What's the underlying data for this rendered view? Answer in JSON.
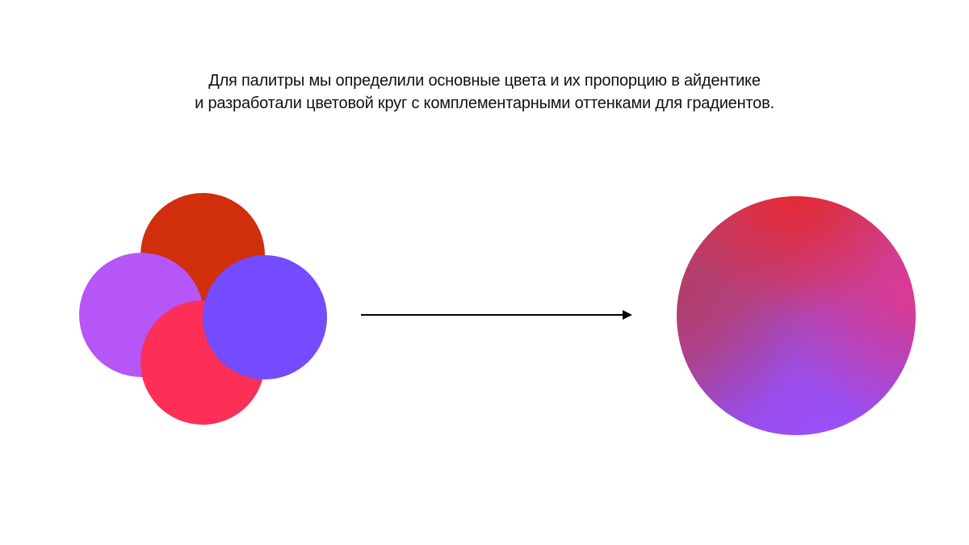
{
  "caption": {
    "line1": "Для палитры мы определили основные цвета и их пропорцию в айдентике",
    "line2": "и разработали цветовой круг с комплементарными оттенками для градиентов."
  },
  "palette": {
    "colors": [
      {
        "name": "red",
        "hex": "#d12e0b"
      },
      {
        "name": "violet",
        "hex": "#b655f8"
      },
      {
        "name": "pink",
        "hex": "#fd2f57"
      },
      {
        "name": "blue-violet",
        "hex": "#744bff"
      }
    ]
  },
  "gradient_circle": {
    "stops": [
      "#e32b2e",
      "#e13a8a",
      "#a84063",
      "#9a4cf5"
    ]
  },
  "arrow": {
    "icon": "arrow-right-icon"
  }
}
